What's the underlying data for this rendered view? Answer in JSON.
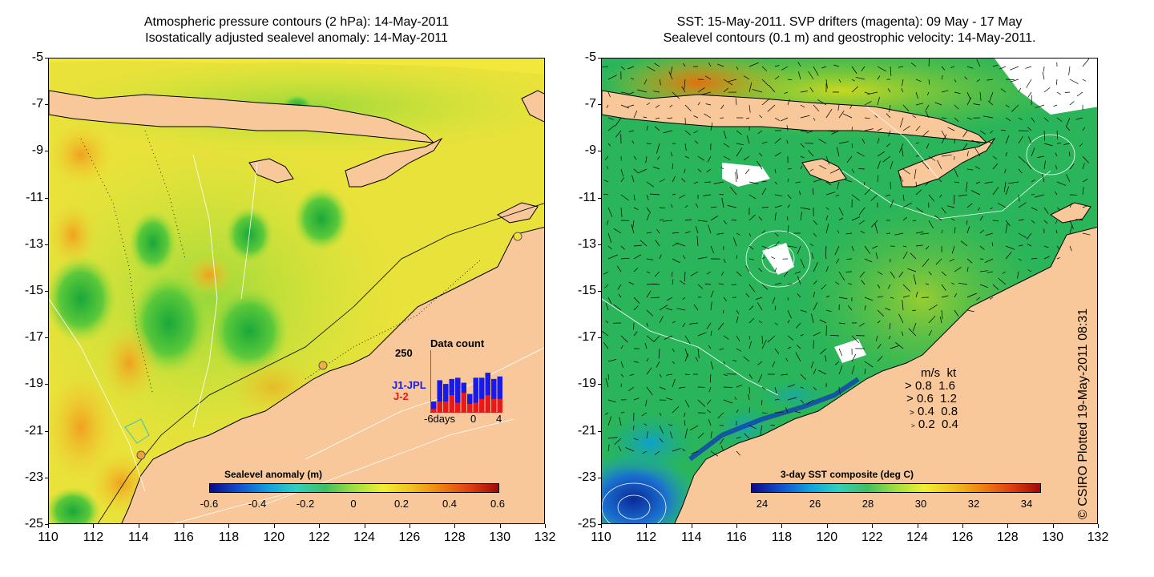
{
  "left_panel": {
    "title_line1": "Atmospheric pressure contours (2 hPa): 14-May-2011",
    "title_line2": "Isostatically adjusted sealevel anomaly: 14-May-2011",
    "colorbar": {
      "label": "Sealevel anomaly (m)",
      "ticks": [
        "-0.6",
        "-0.4",
        "-0.2",
        "0",
        "0.2",
        "0.4",
        "0.6"
      ]
    },
    "inset": {
      "title": "Data count",
      "ymax_label": "250",
      "series1": "J1-JPL",
      "series2": "J-2",
      "x_ticks": [
        "-6days",
        "0",
        "4"
      ],
      "j1_values": [
        45,
        130,
        115,
        135,
        140,
        120,
        75,
        140,
        140,
        160,
        135,
        145
      ],
      "j2_values": [
        15,
        45,
        45,
        70,
        40,
        80,
        35,
        40,
        55,
        70,
        55,
        55
      ],
      "ymax": 250
    }
  },
  "right_panel": {
    "title_line1": "SST: 15-May-2011. SVP drifters (magenta): 09 May - 17 May",
    "title_line2": "Sealevel contours (0.1 m) and geostrophic velocity: 14-May-2011.",
    "colorbar": {
      "label": "3-day SST composite (deg C)",
      "ticks": [
        "24",
        "26",
        "28",
        "30",
        "32",
        "34"
      ]
    },
    "legend": {
      "header_ms": "m/s",
      "header_kt": "kt",
      "rows": [
        {
          "ms": "0.8",
          "kt": "1.6"
        },
        {
          "ms": "0.6",
          "kt": "1.2"
        },
        {
          "ms": "0.4",
          "kt": "0.8"
        },
        {
          "ms": "0.2",
          "kt": "0.4"
        }
      ]
    }
  },
  "axes": {
    "y_ticks": [
      "-5",
      "-7",
      "-9",
      "-11",
      "-13",
      "-15",
      "-17",
      "-19",
      "-21",
      "-23",
      "-25"
    ],
    "x_ticks": [
      "110",
      "112",
      "114",
      "116",
      "118",
      "120",
      "122",
      "124",
      "126",
      "128",
      "130",
      "132"
    ]
  },
  "credit": "© CSIRO Plotted 19-May-2011 08:31",
  "colors": {
    "land": "#f9c89a",
    "sla_background": "#f2e83c",
    "sst_background": "#23b25a"
  }
}
